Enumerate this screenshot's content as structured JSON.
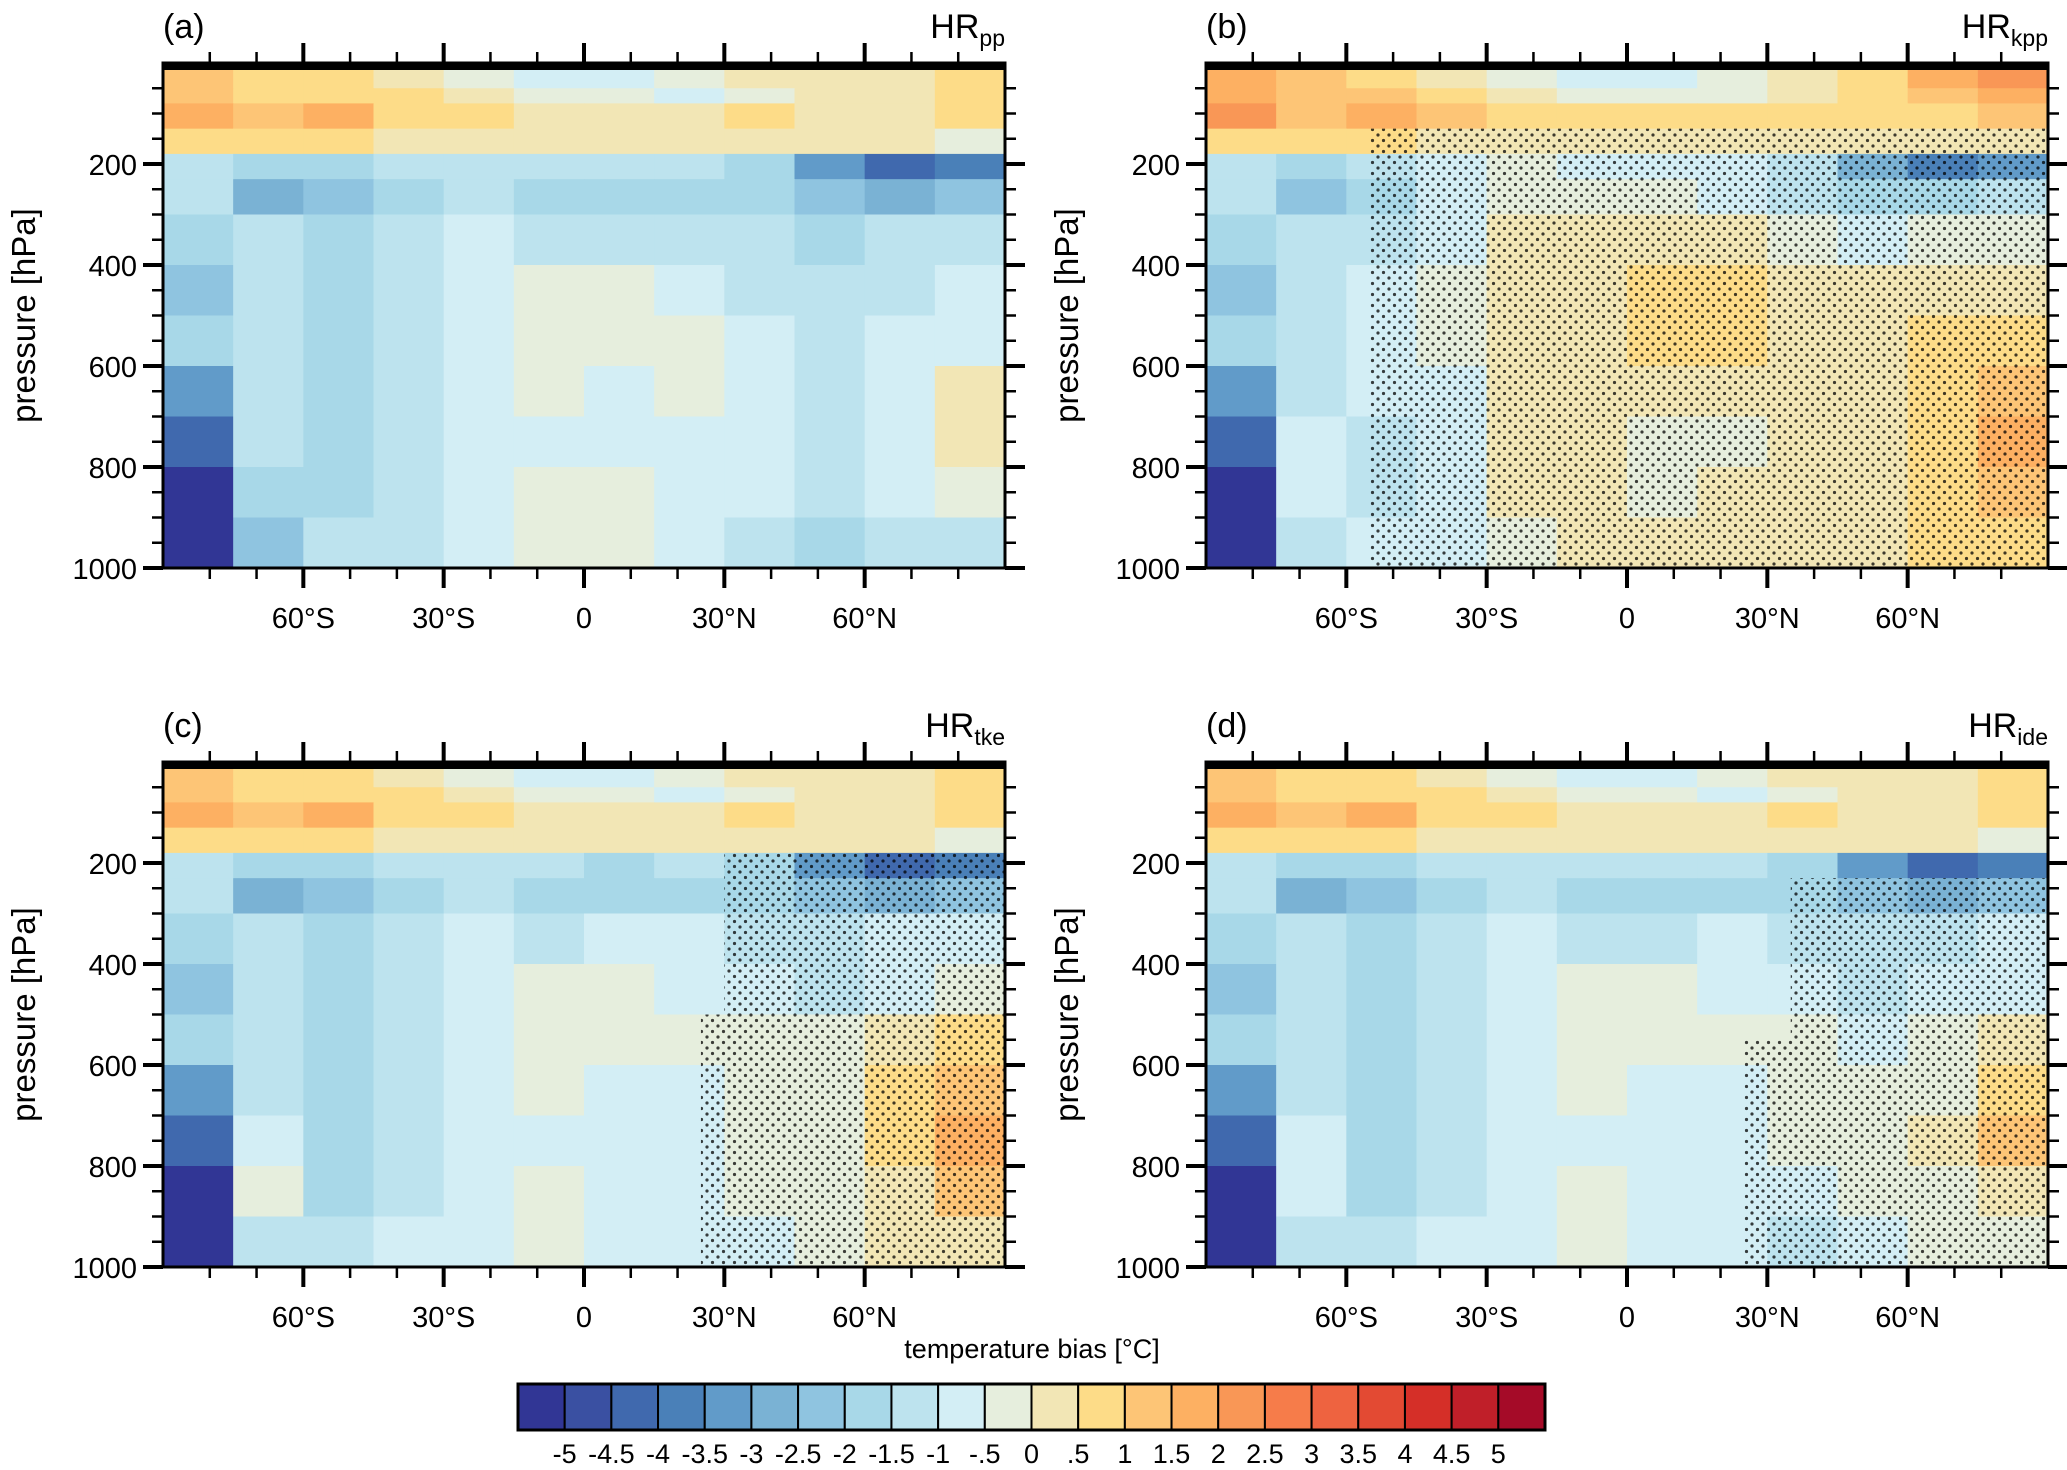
{
  "chart_data": {
    "type": "heatmap",
    "colorbar": {
      "title": "temperature bias [°C]",
      "tick_labels": [
        "-5",
        "-4.5",
        "-4",
        "-3.5",
        "-3",
        "-2.5",
        "-2",
        "-1.5",
        "-1",
        "-.5",
        "0",
        ".5",
        "1",
        "1.5",
        "2",
        "2.5",
        "3",
        "3.5",
        "4",
        "4.5",
        "5"
      ],
      "levels": [
        -5,
        -4.5,
        -4,
        -3.5,
        -3,
        -2.5,
        -2,
        -1.5,
        -1,
        -0.5,
        0,
        0.5,
        1,
        1.5,
        2,
        2.5,
        3,
        3.5,
        4,
        4.5,
        5
      ],
      "colors": [
        "#313695",
        "#3a50a2",
        "#4069ae",
        "#4a80b8",
        "#619bc9",
        "#7ab2d4",
        "#8fc4e0",
        "#a8d8e8",
        "#bde3ee",
        "#d3eef5",
        "#e6eedd",
        "#f2e6b5",
        "#fddc88",
        "#fdc576",
        "#fdb062",
        "#f99756",
        "#f67c4a",
        "#ee6340",
        "#e34a33",
        "#d52f28",
        "#c01f29",
        "#a50b28"
      ]
    },
    "xlim": [
      -90,
      90
    ],
    "ylim": [
      0,
      1000
    ],
    "ylabel": "pressure [hPa]",
    "x_ticks": [
      {
        "value": -60,
        "label": "60°S"
      },
      {
        "value": -30,
        "label": "30°S"
      },
      {
        "value": 0,
        "label": "0"
      },
      {
        "value": 30,
        "label": "30°N"
      },
      {
        "value": 60,
        "label": "60°N"
      }
    ],
    "y_ticks": [
      {
        "value": 200,
        "label": "200"
      },
      {
        "value": 400,
        "label": "400"
      },
      {
        "value": 600,
        "label": "600"
      },
      {
        "value": 800,
        "label": "800"
      },
      {
        "value": 1000,
        "label": "1000"
      }
    ],
    "lat_edges": [
      -90,
      -75,
      -60,
      -45,
      -30,
      -15,
      0,
      15,
      30,
      45,
      60,
      75,
      90
    ],
    "pressure_edges": [
      0,
      50,
      80,
      130,
      180,
      230,
      300,
      400,
      500,
      600,
      700,
      800,
      900,
      1000
    ],
    "panels": [
      {
        "label": "(a)",
        "title_main": "HR",
        "title_sub": "pp",
        "stipple": [],
        "values": [
          [
            1.3,
            0.8,
            0.8,
            0.3,
            -0.3,
            -0.8,
            -0.8,
            -0.3,
            0.3,
            0.3,
            0.3,
            0.8
          ],
          [
            1.3,
            0.8,
            0.8,
            0.8,
            0.3,
            -0.3,
            -0.3,
            -0.8,
            -0.3,
            0.3,
            0.3,
            0.8
          ],
          [
            1.8,
            1.3,
            1.8,
            0.8,
            0.8,
            0.3,
            0.3,
            0.3,
            0.8,
            0.3,
            0.3,
            0.8
          ],
          [
            0.8,
            0.8,
            0.8,
            0.3,
            0.3,
            0.3,
            0.3,
            0.3,
            0.3,
            0.3,
            0.3,
            -0.3
          ],
          [
            -1.3,
            -1.8,
            -1.8,
            -1.3,
            -1.3,
            -1.3,
            -1.3,
            -1.3,
            -1.8,
            -3.3,
            -4.3,
            -3.8
          ],
          [
            -1.3,
            -2.8,
            -2.3,
            -1.8,
            -1.3,
            -1.8,
            -1.8,
            -1.8,
            -1.8,
            -2.3,
            -2.8,
            -2.3
          ],
          [
            -1.8,
            -1.3,
            -1.8,
            -1.3,
            -0.8,
            -1.3,
            -1.3,
            -1.3,
            -1.3,
            -1.8,
            -1.3,
            -1.3
          ],
          [
            -2.3,
            -1.3,
            -1.8,
            -1.3,
            -0.8,
            -0.3,
            -0.3,
            -0.8,
            -1.3,
            -1.3,
            -1.3,
            -0.8
          ],
          [
            -1.8,
            -1.3,
            -1.8,
            -1.3,
            -0.8,
            -0.3,
            -0.3,
            -0.3,
            -0.8,
            -1.3,
            -0.8,
            -0.8
          ],
          [
            -3.3,
            -1.3,
            -1.8,
            -1.3,
            -0.8,
            -0.3,
            -0.8,
            -0.3,
            -0.8,
            -1.3,
            -0.8,
            0.3
          ],
          [
            -4.3,
            -1.3,
            -1.8,
            -1.3,
            -0.8,
            -0.8,
            -0.8,
            -0.8,
            -0.8,
            -1.3,
            -0.8,
            0.3
          ],
          [
            -5.3,
            -1.8,
            -1.8,
            -1.3,
            -0.8,
            -0.3,
            -0.3,
            -0.8,
            -0.8,
            -1.3,
            -0.8,
            -0.3
          ],
          [
            -5.3,
            -2.3,
            -1.3,
            -1.3,
            -0.8,
            -0.3,
            -0.3,
            -0.8,
            -1.3,
            -1.8,
            -1.3,
            -1.3
          ]
        ]
      },
      {
        "label": "(b)",
        "title_main": "HR",
        "title_sub": "kpp",
        "stipple": [
          {
            "lat": [
              -55,
              90
            ],
            "p": [
              130,
              1000
            ]
          }
        ],
        "values": [
          [
            1.8,
            1.3,
            0.8,
            0.3,
            -0.3,
            -0.8,
            -0.8,
            -0.3,
            0.3,
            0.8,
            1.8,
            2.3
          ],
          [
            1.8,
            1.3,
            1.3,
            0.8,
            0.3,
            -0.3,
            -0.3,
            -0.3,
            0.3,
            0.8,
            1.3,
            1.8
          ],
          [
            2.3,
            1.3,
            1.8,
            1.3,
            0.8,
            0.8,
            0.8,
            0.8,
            0.8,
            0.8,
            0.8,
            1.3
          ],
          [
            0.8,
            0.8,
            0.8,
            0.3,
            0.3,
            0.3,
            0.3,
            0.3,
            0.3,
            0.3,
            0.3,
            0.3
          ],
          [
            -1.3,
            -1.8,
            -1.3,
            -0.8,
            -0.3,
            -0.8,
            -0.8,
            -0.8,
            -1.3,
            -2.8,
            -3.8,
            -3.3
          ],
          [
            -1.3,
            -2.3,
            -1.8,
            -0.8,
            -0.3,
            -0.3,
            -0.3,
            -0.8,
            -1.3,
            -1.8,
            -1.8,
            -1.3
          ],
          [
            -1.8,
            -1.3,
            -1.3,
            -0.8,
            0.3,
            0.3,
            0.3,
            0.3,
            -0.3,
            -0.8,
            -0.3,
            -0.3
          ],
          [
            -2.3,
            -1.3,
            -0.8,
            -0.3,
            0.3,
            0.3,
            0.8,
            0.8,
            0.3,
            0.3,
            0.3,
            0.3
          ],
          [
            -1.8,
            -1.3,
            -0.8,
            -0.3,
            0.3,
            0.3,
            0.8,
            0.8,
            0.3,
            0.3,
            0.8,
            0.8
          ],
          [
            -3.3,
            -1.3,
            -0.8,
            -0.8,
            0.3,
            0.3,
            0.3,
            0.3,
            0.3,
            0.3,
            0.8,
            1.3
          ],
          [
            -4.3,
            -0.8,
            -1.3,
            -0.8,
            0.3,
            0.3,
            -0.3,
            -0.3,
            0.3,
            0.3,
            0.8,
            1.8
          ],
          [
            -5.3,
            -0.8,
            -1.3,
            -0.8,
            0.3,
            0.3,
            -0.3,
            0.3,
            0.3,
            0.3,
            0.8,
            1.3
          ],
          [
            -5.3,
            -1.3,
            -0.8,
            -0.8,
            -0.3,
            0.3,
            0.3,
            0.3,
            0.3,
            0.3,
            0.8,
            0.8
          ]
        ]
      },
      {
        "label": "(c)",
        "title_main": "HR",
        "title_sub": "tke",
        "stipple": [
          {
            "lat": [
              30,
              90
            ],
            "p": [
              180,
              500
            ]
          },
          {
            "lat": [
              25,
              90
            ],
            "p": [
              500,
              1000
            ]
          }
        ],
        "values": [
          [
            1.3,
            0.8,
            0.8,
            0.3,
            -0.3,
            -0.8,
            -0.8,
            -0.3,
            0.3,
            0.3,
            0.3,
            0.8
          ],
          [
            1.3,
            0.8,
            0.8,
            0.8,
            0.3,
            -0.3,
            -0.3,
            -0.8,
            -0.3,
            0.3,
            0.3,
            0.8
          ],
          [
            1.8,
            1.3,
            1.8,
            0.8,
            0.8,
            0.3,
            0.3,
            0.3,
            0.8,
            0.3,
            0.3,
            0.8
          ],
          [
            0.8,
            0.8,
            0.8,
            0.3,
            0.3,
            0.3,
            0.3,
            0.3,
            0.3,
            0.3,
            0.3,
            -0.3
          ],
          [
            -1.3,
            -1.8,
            -1.8,
            -1.3,
            -1.3,
            -1.3,
            -1.8,
            -1.3,
            -1.8,
            -3.3,
            -4.3,
            -3.8
          ],
          [
            -1.3,
            -2.8,
            -2.3,
            -1.8,
            -1.3,
            -1.8,
            -1.8,
            -1.8,
            -1.8,
            -2.3,
            -2.8,
            -2.3
          ],
          [
            -1.8,
            -1.3,
            -1.8,
            -1.3,
            -0.8,
            -1.3,
            -0.8,
            -0.8,
            -1.3,
            -1.3,
            -0.8,
            -0.8
          ],
          [
            -2.3,
            -1.3,
            -1.8,
            -1.3,
            -0.8,
            -0.3,
            -0.3,
            -0.8,
            -0.8,
            -1.3,
            -0.8,
            -0.3
          ],
          [
            -1.8,
            -1.3,
            -1.8,
            -1.3,
            -0.8,
            -0.3,
            -0.3,
            -0.3,
            -0.3,
            -0.3,
            0.3,
            0.8
          ],
          [
            -3.3,
            -1.3,
            -1.8,
            -1.3,
            -0.8,
            -0.3,
            -0.8,
            -0.8,
            -0.3,
            -0.3,
            0.8,
            1.3
          ],
          [
            -4.3,
            -0.8,
            -1.8,
            -1.3,
            -0.8,
            -0.8,
            -0.8,
            -0.8,
            -0.3,
            -0.3,
            0.8,
            1.8
          ],
          [
            -5.3,
            -0.3,
            -1.8,
            -1.3,
            -0.8,
            -0.3,
            -0.8,
            -0.8,
            -0.3,
            -0.3,
            0.3,
            1.3
          ],
          [
            -5.3,
            -1.3,
            -1.3,
            -0.8,
            -0.8,
            -0.3,
            -0.8,
            -0.8,
            -0.8,
            -0.3,
            0.3,
            0.3
          ]
        ]
      },
      {
        "label": "(d)",
        "title_main": "HR",
        "title_sub": "ide",
        "stipple": [
          {
            "lat": [
              35,
              90
            ],
            "p": [
              230,
              550
            ]
          },
          {
            "lat": [
              25,
              90
            ],
            "p": [
              550,
              1000
            ]
          }
        ],
        "values": [
          [
            1.3,
            0.8,
            0.8,
            0.3,
            -0.3,
            -0.8,
            -0.8,
            -0.3,
            0.3,
            0.3,
            0.3,
            0.8
          ],
          [
            1.3,
            0.8,
            0.8,
            0.8,
            0.3,
            -0.3,
            -0.3,
            -0.8,
            -0.3,
            0.3,
            0.3,
            0.8
          ],
          [
            1.8,
            1.3,
            1.8,
            0.8,
            0.8,
            0.3,
            0.3,
            0.3,
            0.8,
            0.3,
            0.3,
            0.8
          ],
          [
            0.8,
            0.8,
            0.8,
            0.3,
            0.3,
            0.3,
            0.3,
            0.3,
            0.3,
            0.3,
            0.3,
            -0.3
          ],
          [
            -1.3,
            -1.8,
            -1.8,
            -1.3,
            -1.3,
            -1.3,
            -1.3,
            -1.3,
            -1.8,
            -3.3,
            -4.3,
            -3.8
          ],
          [
            -1.3,
            -2.8,
            -2.3,
            -1.8,
            -1.3,
            -1.8,
            -1.8,
            -1.8,
            -1.8,
            -2.3,
            -2.8,
            -2.3
          ],
          [
            -1.8,
            -1.3,
            -1.8,
            -1.3,
            -0.8,
            -1.3,
            -1.3,
            -0.8,
            -1.3,
            -1.3,
            -1.3,
            -0.8
          ],
          [
            -2.3,
            -1.3,
            -1.8,
            -1.3,
            -0.8,
            -0.3,
            -0.3,
            -0.8,
            -0.8,
            -1.3,
            -0.8,
            -0.8
          ],
          [
            -1.8,
            -1.3,
            -1.8,
            -1.3,
            -0.8,
            -0.3,
            -0.3,
            -0.3,
            -0.3,
            -0.8,
            -0.3,
            0.3
          ],
          [
            -3.3,
            -1.3,
            -1.8,
            -1.3,
            -0.8,
            -0.3,
            -0.8,
            -0.8,
            -0.3,
            -0.3,
            -0.3,
            0.8
          ],
          [
            -4.3,
            -0.8,
            -1.8,
            -1.3,
            -0.8,
            -0.8,
            -0.8,
            -0.8,
            -0.3,
            -0.3,
            0.3,
            1.3
          ],
          [
            -5.3,
            -0.8,
            -1.8,
            -1.3,
            -0.8,
            -0.3,
            -0.8,
            -0.8,
            -0.8,
            -0.3,
            -0.3,
            0.3
          ],
          [
            -5.3,
            -1.3,
            -1.3,
            -0.8,
            -0.8,
            -0.3,
            -0.8,
            -0.8,
            -1.3,
            -0.8,
            -0.3,
            -0.3
          ]
        ]
      }
    ]
  }
}
